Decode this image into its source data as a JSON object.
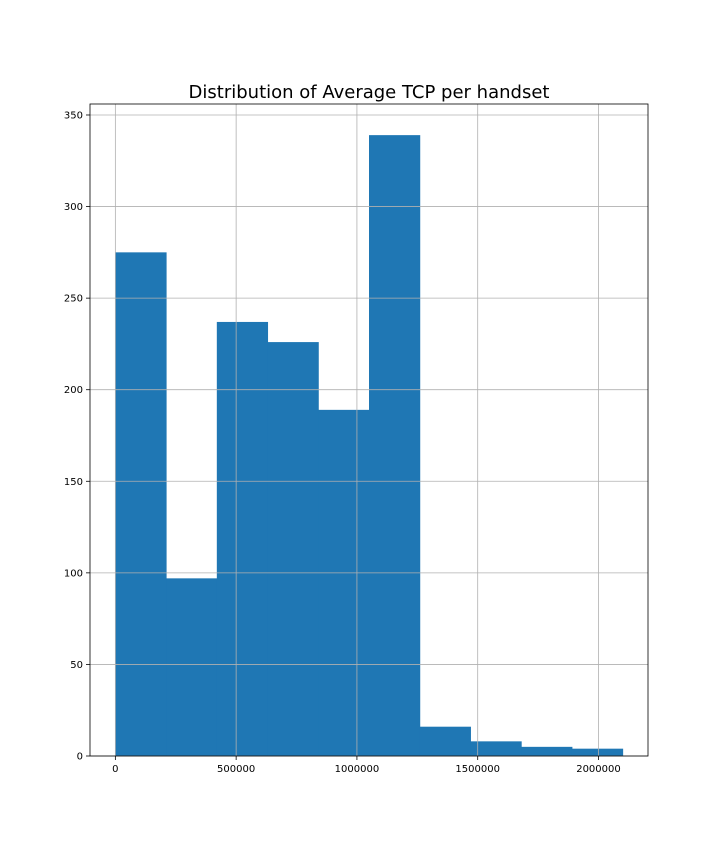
{
  "chart_data": {
    "type": "bar",
    "title": "Distribution of Average TCP per handset",
    "xlabel": "",
    "ylabel": "",
    "bin_edges": [
      0,
      210000,
      420000,
      630000,
      840000,
      1050000,
      1260000,
      1470000,
      1680000,
      1890000,
      2100000
    ],
    "values": [
      275,
      97,
      237,
      226,
      189,
      339,
      16,
      8,
      5,
      4
    ],
    "xlim": [
      -105000,
      2205000
    ],
    "ylim": [
      0,
      356
    ],
    "xticks": [
      0,
      500000,
      1000000,
      1500000,
      2000000
    ],
    "xtick_labels": [
      "0",
      "500000",
      "1000000",
      "1500000",
      "2000000"
    ],
    "yticks": [
      0,
      50,
      100,
      150,
      200,
      250,
      300,
      350
    ],
    "ytick_labels": [
      "0",
      "50",
      "100",
      "150",
      "200",
      "250",
      "300",
      "350"
    ],
    "grid": true,
    "colors": {
      "bar": "#1f77b4",
      "grid": "#b0b0b0",
      "axis": "#000000"
    }
  }
}
